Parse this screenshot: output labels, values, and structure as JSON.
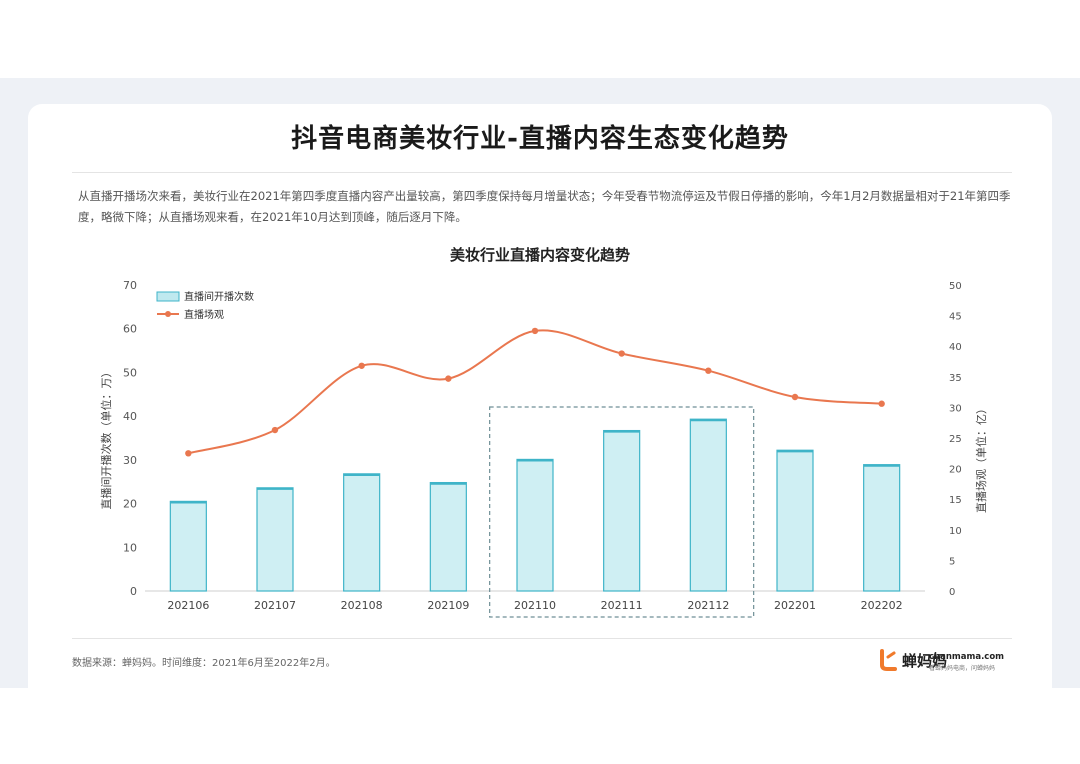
{
  "page": {
    "title": "抖音电商美妆行业-直播内容生态变化趋势",
    "description": "从直播开播场次来看，美妆行业在2021年第四季度直播内容产出量较高，第四季度保持每月增量状态；今年受春节物流停运及节假日停播的影响，今年1月2月数据量相对于21年第四季度，略微下降；从直播场观来看，在2021年10月达到顶峰，随后逐月下降。",
    "source": "数据来源：蝉妈妈。时间维度：2021年6月至2022年2月。",
    "logo_cn": "蝉妈妈",
    "logo_en": "chanmama.com",
    "logo_sub": "看蝉妈妈电商，问蝉妈妈"
  },
  "chart_data": {
    "type": "bar",
    "title": "美妆行业直播内容变化趋势",
    "categories": [
      "202106",
      "202107",
      "202108",
      "202109",
      "202110",
      "202111",
      "202112",
      "202201",
      "202202"
    ],
    "series": [
      {
        "name": "直播间开播次数",
        "type": "bar",
        "axis": "left",
        "values": [
          20.5,
          23.6,
          26.8,
          24.8,
          30.1,
          36.7,
          39.3,
          32.2,
          28.9
        ]
      },
      {
        "name": "直播场观",
        "type": "line",
        "axis": "right",
        "values": [
          22.5,
          26.3,
          36.8,
          34.7,
          42.5,
          38.8,
          36.0,
          31.7,
          30.6
        ]
      }
    ],
    "ylabel": "直播间开播次数（单位：万）",
    "y2label": "直播场观（单位：亿）",
    "ylim": [
      0,
      70
    ],
    "y2lim": [
      0,
      50
    ],
    "yticks": [
      0,
      10,
      20,
      30,
      40,
      50,
      60,
      70
    ],
    "y2ticks": [
      0,
      5,
      10,
      15,
      20,
      25,
      30,
      35,
      40,
      45,
      50
    ],
    "highlight": [
      "202110",
      "202112"
    ],
    "legend": "top-left",
    "bar_color": "#bfe9ef",
    "bar_edge": "#3fb4c8",
    "line_color": "#e9774f"
  }
}
